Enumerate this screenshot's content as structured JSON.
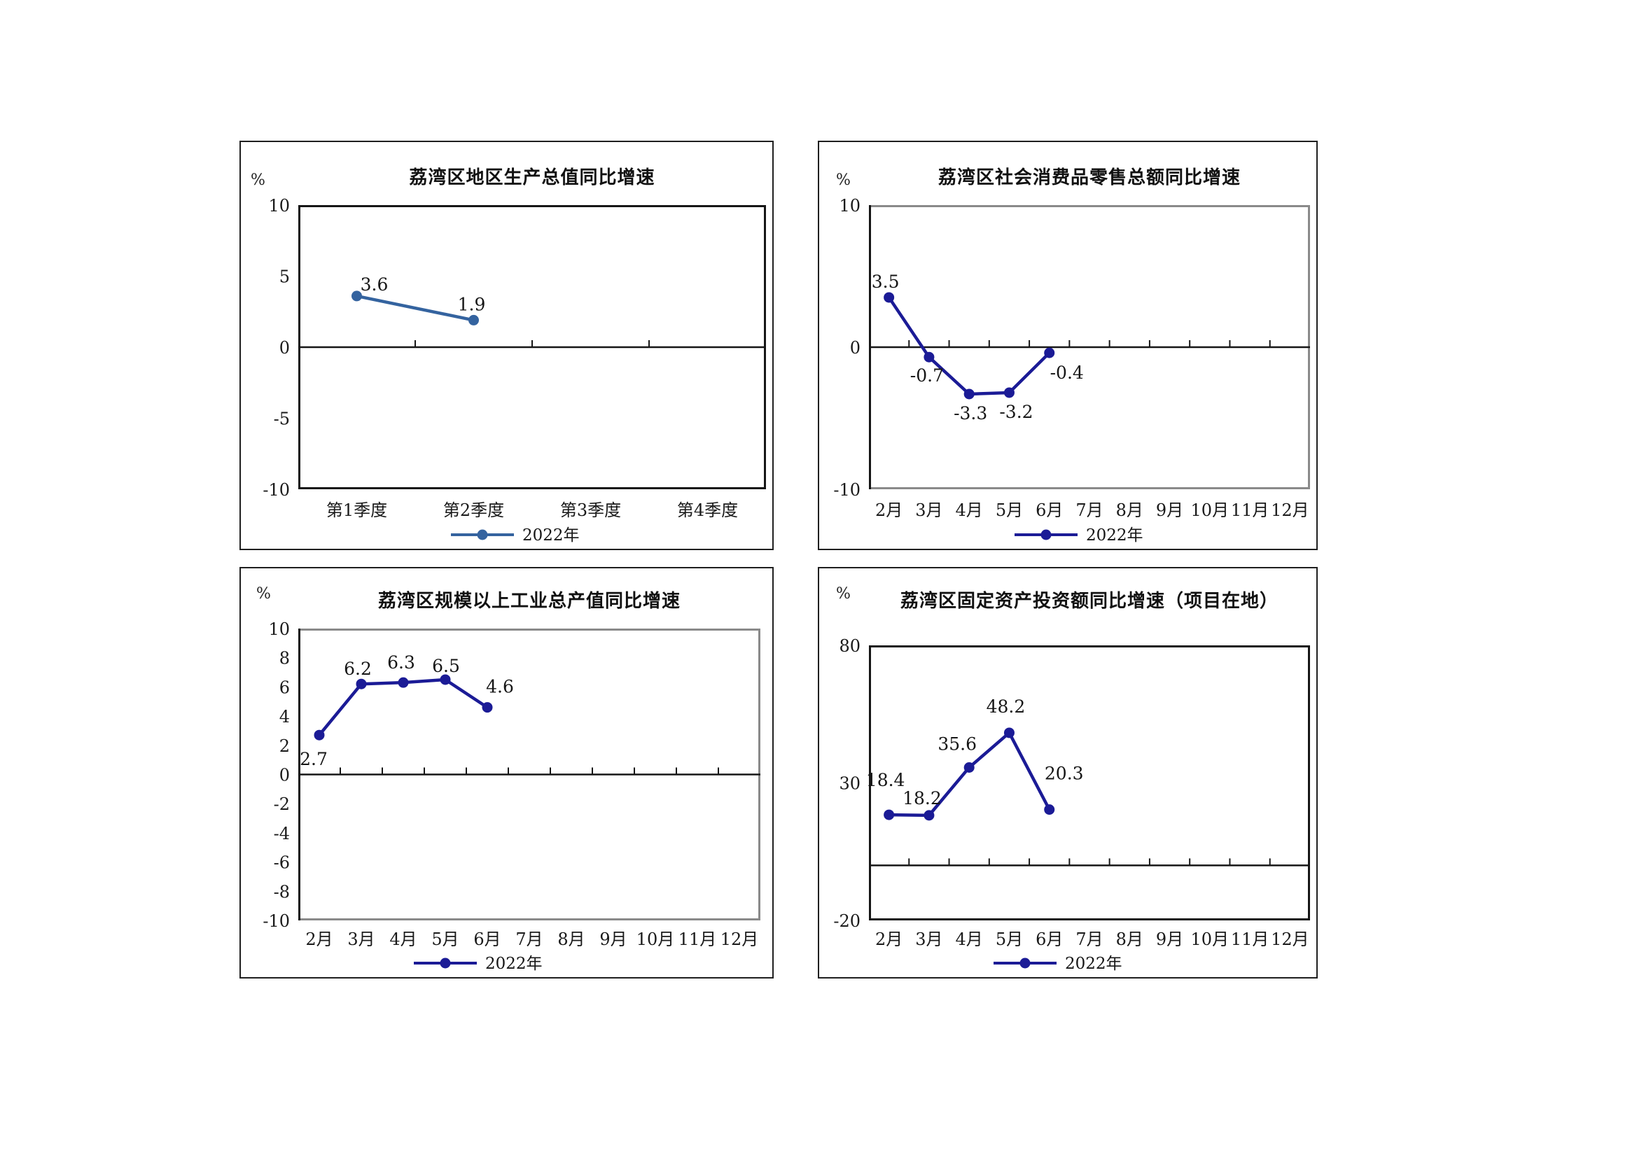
{
  "page": {
    "background": "#ffffff"
  },
  "chart_data": [
    {
      "id": "gdp",
      "type": "line",
      "title": "荔湾区地区生产总值同比增速",
      "unit_label": "%",
      "categories": [
        "第1季度",
        "第2季度",
        "第3季度",
        "第4季度"
      ],
      "series": [
        {
          "name": "2022年",
          "values": [
            3.6,
            1.9,
            null,
            null
          ]
        }
      ],
      "data_labels": [
        "3.6",
        "1.9",
        "",
        ""
      ],
      "yticks": [
        10,
        5,
        0,
        -5,
        -10
      ],
      "ylim": [
        -10,
        10
      ],
      "line_color": "#34639f",
      "legend_label": "2022年",
      "legend_position": "bottom-center",
      "grid": false
    },
    {
      "id": "retail",
      "type": "line",
      "title": "荔湾区社会消费品零售总额同比增速",
      "unit_label": "%",
      "categories": [
        "2月",
        "3月",
        "4月",
        "5月",
        "6月",
        "7月",
        "8月",
        "9月",
        "10月",
        "11月",
        "12月"
      ],
      "series": [
        {
          "name": "2022年",
          "values": [
            3.5,
            -0.7,
            -3.3,
            -3.2,
            -0.4,
            null,
            null,
            null,
            null,
            null,
            null
          ]
        }
      ],
      "data_labels": [
        "3.5",
        "-0.7",
        "-3.3",
        "-3.2",
        "-0.4",
        "",
        "",
        "",
        "",
        "",
        ""
      ],
      "yticks": [
        10,
        0,
        -10
      ],
      "ylim": [
        -10,
        10
      ],
      "line_color": "#1b1b96",
      "legend_label": "2022年",
      "legend_position": "bottom-center",
      "grid": false
    },
    {
      "id": "industry",
      "type": "line",
      "title": "荔湾区规模以上工业总产值同比增速",
      "unit_label": "%",
      "categories": [
        "2月",
        "3月",
        "4月",
        "5月",
        "6月",
        "7月",
        "8月",
        "9月",
        "10月",
        "11月",
        "12月"
      ],
      "series": [
        {
          "name": "2022年",
          "values": [
            2.7,
            6.2,
            6.3,
            6.5,
            4.6,
            null,
            null,
            null,
            null,
            null,
            null
          ]
        }
      ],
      "data_labels": [
        "2.7",
        "6.2",
        "6.3",
        "6.5",
        "4.6",
        "",
        "",
        "",
        "",
        "",
        ""
      ],
      "yticks": [
        10,
        8,
        6,
        4,
        2,
        0,
        -2,
        -4,
        -6,
        -8,
        -10
      ],
      "ylim": [
        -10,
        10
      ],
      "line_color": "#1b1b96",
      "legend_label": "2022年",
      "legend_position": "bottom-center",
      "grid": false
    },
    {
      "id": "investment",
      "type": "line",
      "title": "荔湾区固定资产投资额同比增速（项目在地）",
      "unit_label": "%",
      "categories": [
        "2月",
        "3月",
        "4月",
        "5月",
        "6月",
        "7月",
        "8月",
        "9月",
        "10月",
        "11月",
        "12月"
      ],
      "series": [
        {
          "name": "2022年",
          "values": [
            18.4,
            18.2,
            35.6,
            48.2,
            20.3,
            null,
            null,
            null,
            null,
            null,
            null
          ]
        }
      ],
      "data_labels": [
        "18.4",
        "18.2",
        "35.6",
        "48.2",
        "20.3",
        "",
        "",
        "",
        "",
        "",
        ""
      ],
      "yticks": [
        80,
        30,
        -20
      ],
      "ylim": [
        -20,
        80
      ],
      "line_color": "#1b1b96",
      "legend_label": "2022年",
      "legend_position": "bottom-center",
      "grid": false
    }
  ]
}
